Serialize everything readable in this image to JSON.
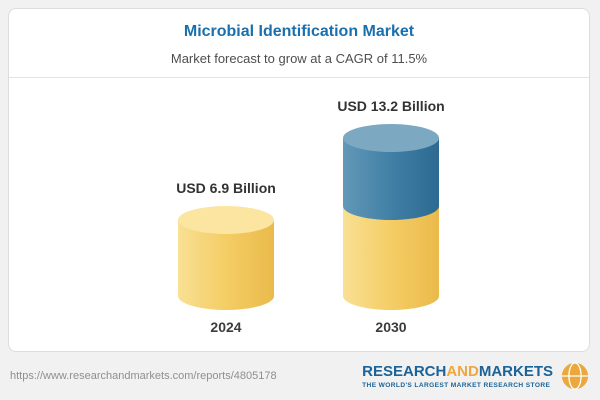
{
  "chart_data": {
    "type": "bar",
    "subtype": "3d-cylinder-stacked",
    "title": "Microbial Identification Market",
    "subtitle": "Market forecast to grow at a CAGR of 11.5%",
    "unit": "USD Billion",
    "cagr_percent": 11.5,
    "categories": [
      "2024",
      "2030"
    ],
    "values": [
      6.9,
      13.2
    ],
    "value_labels": [
      "USD 6.9 Billion",
      "USD 13.2 Billion"
    ],
    "stacks": {
      "2024": [
        {
          "color_name": "gold",
          "value": 6.9
        }
      ],
      "2030": [
        {
          "color_name": "gold",
          "value": 6.9
        },
        {
          "color_name": "blue",
          "value": 6.3
        }
      ]
    },
    "ylim": [
      0,
      14
    ],
    "grid": false,
    "legend": "none",
    "colors": {
      "gold": "#f4cd65",
      "blue": "#3e7da4",
      "title_blue": "#1a6fae"
    }
  },
  "footer": {
    "url": "https://www.researchandmarkets.com/reports/4805178",
    "logo": {
      "research": "RESEARCH",
      "and": "AND",
      "markets": "MARKETS",
      "tagline": "THE WORLD'S LARGEST MARKET RESEARCH STORE"
    }
  }
}
